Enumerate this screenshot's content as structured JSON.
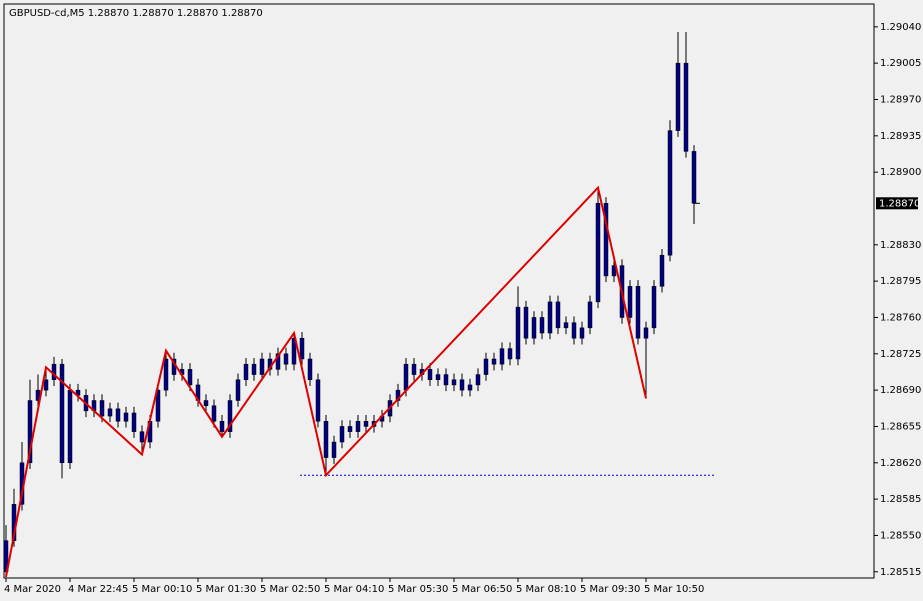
{
  "chart_data": {
    "type": "candlestick",
    "title": "GBPUSD-cd,M5  1.28870 1.28870 1.28870 1.28870",
    "categories": [
      "4 Mar 2020",
      null,
      null,
      null,
      null,
      null,
      null,
      null,
      "4 Mar 22:45",
      null,
      null,
      null,
      null,
      null,
      null,
      null,
      "5 Mar 00:10",
      null,
      null,
      null,
      null,
      null,
      null,
      null,
      "5 Mar 01:30",
      null,
      null,
      null,
      null,
      null,
      null,
      null,
      "5 Mar 02:50",
      null,
      null,
      null,
      null,
      null,
      null,
      null,
      "5 Mar 04:10",
      null,
      null,
      null,
      null,
      null,
      null,
      null,
      "5 Mar 05:30",
      null,
      null,
      null,
      null,
      null,
      null,
      null,
      "5 Mar 06:50",
      null,
      null,
      null,
      null,
      null,
      null,
      null,
      "5 Mar 08:10",
      null,
      null,
      null,
      null,
      null,
      null,
      null,
      "5 Mar 09:30",
      null,
      null,
      null,
      null,
      null,
      null,
      null,
      "5 Mar 10:50",
      null,
      null,
      null,
      null,
      null,
      null
    ],
    "open": [
      1.28515,
      1.28545,
      1.2858,
      1.2862,
      1.2868,
      1.2869,
      1.287,
      1.28715,
      1.2862,
      1.2869,
      1.28685,
      1.2867,
      1.2868,
      1.28665,
      1.28672,
      1.2866,
      1.28668,
      1.2865,
      1.2864,
      1.2866,
      1.2869,
      1.2872,
      1.28705,
      1.2871,
      1.28695,
      1.2868,
      1.28675,
      1.2866,
      1.2865,
      1.2868,
      1.287,
      1.28715,
      1.28705,
      1.2872,
      1.2871,
      1.28725,
      1.28715,
      1.2874,
      1.2872,
      1.287,
      1.2866,
      1.28625,
      1.2864,
      1.28655,
      1.2865,
      1.2866,
      1.28655,
      1.2866,
      1.28665,
      1.2868,
      1.2869,
      1.28715,
      1.28705,
      1.2871,
      1.287,
      1.28705,
      1.28695,
      1.287,
      1.2869,
      1.28695,
      1.28705,
      1.2872,
      1.28715,
      1.2873,
      1.2872,
      1.2877,
      1.2874,
      1.2876,
      1.28745,
      1.28775,
      1.2875,
      1.28755,
      1.2874,
      1.2875,
      1.28775,
      1.2887,
      1.288,
      1.2881,
      1.2876,
      1.2879,
      1.2874,
      1.2875,
      1.2879,
      1.2882,
      1.2894,
      1.29005,
      1.2892
    ],
    "high": [
      1.2856,
      1.28595,
      1.2864,
      1.287,
      1.28705,
      1.28712,
      1.28722,
      1.2872,
      1.28696,
      1.28696,
      1.28691,
      1.28686,
      1.28686,
      1.28678,
      1.28678,
      1.28674,
      1.28674,
      1.28656,
      1.28666,
      1.28696,
      1.28728,
      1.28726,
      1.28716,
      1.28716,
      1.28701,
      1.28686,
      1.28681,
      1.28666,
      1.28686,
      1.28706,
      1.28721,
      1.28721,
      1.28726,
      1.28726,
      1.28731,
      1.28731,
      1.28745,
      1.28746,
      1.28726,
      1.28706,
      1.28666,
      1.28646,
      1.28661,
      1.28661,
      1.28666,
      1.28666,
      1.28666,
      1.28671,
      1.28686,
      1.28696,
      1.28721,
      1.28721,
      1.28716,
      1.28716,
      1.28711,
      1.28711,
      1.28706,
      1.28706,
      1.28701,
      1.28711,
      1.28726,
      1.28726,
      1.28736,
      1.28736,
      1.2879,
      1.28776,
      1.28766,
      1.28766,
      1.28781,
      1.28781,
      1.28761,
      1.28761,
      1.28756,
      1.28781,
      1.28885,
      1.28876,
      1.28816,
      1.28816,
      1.28796,
      1.28796,
      1.28756,
      1.28796,
      1.28826,
      1.2895,
      1.29035,
      1.29035,
      1.28926
    ],
    "low": [
      1.2851,
      1.28539,
      1.28574,
      1.28614,
      1.28674,
      1.28684,
      1.28694,
      1.28605,
      1.28614,
      1.28679,
      1.28664,
      1.28664,
      1.28659,
      1.28659,
      1.28654,
      1.28654,
      1.28644,
      1.28628,
      1.28634,
      1.28654,
      1.28684,
      1.28699,
      1.28699,
      1.28689,
      1.28674,
      1.28669,
      1.28654,
      1.28645,
      1.28644,
      1.28674,
      1.28694,
      1.28699,
      1.28699,
      1.28704,
      1.28704,
      1.28709,
      1.28709,
      1.28714,
      1.28694,
      1.28654,
      1.28608,
      1.28619,
      1.28634,
      1.28644,
      1.28644,
      1.28649,
      1.28649,
      1.28654,
      1.28659,
      1.28674,
      1.28684,
      1.28699,
      1.28699,
      1.28694,
      1.28694,
      1.28689,
      1.28689,
      1.28684,
      1.28684,
      1.28689,
      1.28699,
      1.28709,
      1.28709,
      1.28714,
      1.28714,
      1.28734,
      1.28734,
      1.28739,
      1.28739,
      1.28744,
      1.28744,
      1.28734,
      1.28734,
      1.28744,
      1.28769,
      1.28794,
      1.28794,
      1.28754,
      1.28754,
      1.28734,
      1.28682,
      1.28744,
      1.28784,
      1.28814,
      1.28934,
      1.28914,
      1.2885
    ],
    "close": [
      1.28545,
      1.2858,
      1.2862,
      1.2868,
      1.2869,
      1.287,
      1.28715,
      1.2862,
      1.2869,
      1.28685,
      1.2867,
      1.2868,
      1.28665,
      1.28672,
      1.2866,
      1.28668,
      1.2865,
      1.2864,
      1.2866,
      1.2869,
      1.2872,
      1.28705,
      1.2871,
      1.28695,
      1.2868,
      1.28675,
      1.2866,
      1.2865,
      1.2868,
      1.287,
      1.28715,
      1.28705,
      1.2872,
      1.2871,
      1.28725,
      1.28715,
      1.2874,
      1.2872,
      1.287,
      1.2866,
      1.28625,
      1.2864,
      1.28655,
      1.2865,
      1.2866,
      1.28655,
      1.2866,
      1.28665,
      1.2868,
      1.2869,
      1.28715,
      1.28705,
      1.2871,
      1.287,
      1.28705,
      1.28695,
      1.287,
      1.2869,
      1.28695,
      1.28705,
      1.2872,
      1.28715,
      1.2873,
      1.2872,
      1.2877,
      1.2874,
      1.2876,
      1.28745,
      1.28775,
      1.2875,
      1.28755,
      1.2874,
      1.2875,
      1.28775,
      1.2887,
      1.288,
      1.2881,
      1.2876,
      1.2879,
      1.2874,
      1.2875,
      1.2879,
      1.2882,
      1.2894,
      1.29005,
      1.2892,
      1.2887
    ],
    "candle_color": "#000080",
    "zigzag": {
      "color": "#e00000",
      "x": [
        0,
        5,
        17,
        20,
        27,
        36,
        40,
        74,
        80
      ],
      "values": [
        1.2851,
        1.28712,
        1.28628,
        1.28728,
        1.28645,
        1.28745,
        1.28608,
        1.28885,
        1.28682
      ]
    },
    "level": {
      "value": 1.28608,
      "color": "#0000c0"
    },
    "current_price": {
      "value": 1.2887,
      "label": "1.28870"
    },
    "ylim": [
      1.28509,
      1.29062
    ],
    "yticks": [
      {
        "value": 1.2904,
        "label": "1.29040"
      },
      {
        "value": 1.29005,
        "label": "1.29005"
      },
      {
        "value": 1.2897,
        "label": "1.28970"
      },
      {
        "value": 1.28935,
        "label": "1.28935"
      },
      {
        "value": 1.289,
        "label": "1.28900"
      },
      {
        "value": 1.2883,
        "label": "1.28830"
      },
      {
        "value": 1.28795,
        "label": "1.28795"
      },
      {
        "value": 1.2876,
        "label": "1.28760"
      },
      {
        "value": 1.28725,
        "label": "1.28725"
      },
      {
        "value": 1.2869,
        "label": "1.28690"
      },
      {
        "value": 1.28655,
        "label": "1.28655"
      },
      {
        "value": 1.2862,
        "label": "1.28620"
      },
      {
        "value": 1.28585,
        "label": "1.28585"
      },
      {
        "value": 1.2855,
        "label": "1.28550"
      },
      {
        "value": 1.28515,
        "label": "1.28515"
      }
    ]
  }
}
